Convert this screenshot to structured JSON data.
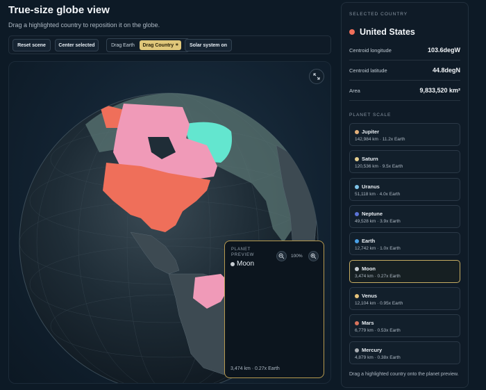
{
  "header": {
    "title": "True-size globe view",
    "subtitle": "Drag a highlighted country to reposition it on the globe."
  },
  "toolbar": {
    "reset_label": "Reset scene",
    "center_label": "Center selected",
    "drag_earth_label": "Drag Earth",
    "drag_country_label": "Drag Country",
    "drag_country_icon": "grid-icon",
    "solar_label": "Solar system on"
  },
  "colors": {
    "accent": "#e0c77a",
    "selected_country": "#ef6f5a",
    "highlight_country": "#f09ab8",
    "greenland": "#63e6cf"
  },
  "preview": {
    "label_line1": "PLANET",
    "label_line2": "PREVIEW",
    "planet_name": "Moon",
    "zoom": "100%",
    "caption": "3,474 km · 0.27x Earth"
  },
  "sidebar": {
    "selected_label": "SELECTED COUNTRY",
    "country_name": "United States",
    "stats": [
      {
        "label": "Centroid longitude",
        "value": "103.6degW"
      },
      {
        "label": "Centroid latitude",
        "value": "44.8degN"
      },
      {
        "label": "Area",
        "value": "9,833,520 km²"
      }
    ],
    "planet_scale_label": "PLANET SCALE",
    "planets": [
      {
        "name": "Jupiter",
        "info": "142,984 km · 11.2x Earth",
        "color": "#e3b07a"
      },
      {
        "name": "Saturn",
        "info": "120,536 km · 9.5x Earth",
        "color": "#e6cf8f"
      },
      {
        "name": "Uranus",
        "info": "51,118 km · 4.0x Earth",
        "color": "#7ec3e8"
      },
      {
        "name": "Neptune",
        "info": "49,528 km · 3.9x Earth",
        "color": "#5b73d6"
      },
      {
        "name": "Earth",
        "info": "12,742 km · 1.0x Earth",
        "color": "#4aa0e6"
      },
      {
        "name": "Moon",
        "info": "3,474 km · 0.27x Earth",
        "color": "#c6ccd2"
      },
      {
        "name": "Venus",
        "info": "12,104 km · 0.95x Earth",
        "color": "#e6c37a"
      },
      {
        "name": "Mars",
        "info": "6,779 km · 0.53x Earth",
        "color": "#d9735c"
      },
      {
        "name": "Mercury",
        "info": "4,879 km · 0.38x Earth",
        "color": "#a9adb2"
      }
    ],
    "selected_planet": "Moon",
    "footnote": "Drag a highlighted country onto the planet preview."
  }
}
